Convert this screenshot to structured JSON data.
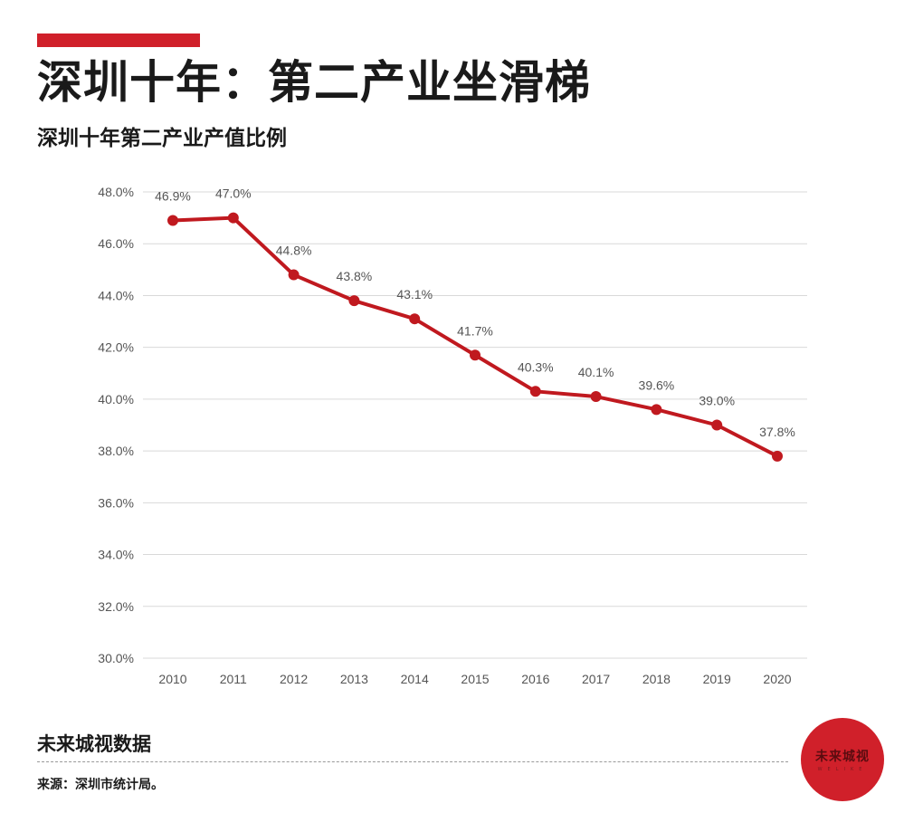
{
  "header": {
    "title": "深圳十年：第二产业坐滑梯",
    "subtitle": "深圳十年第二产业产值比例"
  },
  "footer": {
    "name": "未来城视数据",
    "source": "来源：深圳市统计局。"
  },
  "logo": {
    "text": "未来城视",
    "sub": "WELIKE"
  },
  "colors": {
    "accent": "#d0202a",
    "line": "#c0191f",
    "grid": "#d9d9d9",
    "axis_text": "#555555"
  },
  "chart_data": {
    "type": "line",
    "title": "深圳十年第二产业产值比例",
    "xlabel": "",
    "ylabel": "",
    "categories": [
      "2010",
      "2011",
      "2012",
      "2013",
      "2014",
      "2015",
      "2016",
      "2017",
      "2018",
      "2019",
      "2020"
    ],
    "series": [
      {
        "name": "第二产业产值比例",
        "values": [
          46.9,
          47.0,
          44.8,
          43.8,
          43.1,
          41.7,
          40.3,
          40.1,
          39.6,
          39.0,
          37.8
        ],
        "labels": [
          "46.9%",
          "47.0%",
          "44.8%",
          "43.8%",
          "43.1%",
          "41.7%",
          "40.3%",
          "40.1%",
          "39.6%",
          "39.0%",
          "37.8%"
        ]
      }
    ],
    "ylim": [
      30,
      48
    ],
    "yticks": [
      30,
      32,
      34,
      36,
      38,
      40,
      42,
      44,
      46,
      48
    ],
    "ytick_labels": [
      "30.0%",
      "32.0%",
      "34.0%",
      "36.0%",
      "38.0%",
      "40.0%",
      "42.0%",
      "44.0%",
      "46.0%",
      "48.0%"
    ],
    "grid": true,
    "legend": "none"
  }
}
